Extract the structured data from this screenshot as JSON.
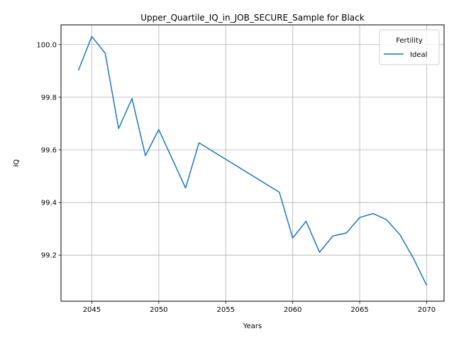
{
  "chart_data": {
    "type": "line",
    "title": "Upper_Quartile_IQ_in_JOB_SECURE_Sample for Black",
    "xlabel": "Years",
    "ylabel": "IQ",
    "xlim": [
      2042.7,
      2071.3
    ],
    "ylim": [
      99.025,
      100.075
    ],
    "xticks": [
      2045,
      2050,
      2055,
      2060,
      2065,
      2070
    ],
    "yticks": [
      99.2,
      99.4,
      99.6,
      99.8,
      100.0
    ],
    "xtick_labels": [
      "2045",
      "2050",
      "2055",
      "2060",
      "2065",
      "2070"
    ],
    "ytick_labels": [
      "99.2",
      "99.4",
      "99.6",
      "99.8",
      "100.0"
    ],
    "grid": true,
    "legend": {
      "title": "Fertility",
      "placement": "top-right"
    },
    "series": [
      {
        "name": "Ideal",
        "color": "#1f77b4",
        "x": [
          2044,
          2045,
          2046,
          2047,
          2048,
          2049,
          2050,
          2052,
          2053,
          2059,
          2060,
          2061,
          2062,
          2063,
          2064,
          2065,
          2066,
          2067,
          2068,
          2069,
          2070
        ],
        "y": [
          99.902,
          100.031,
          99.967,
          99.681,
          99.795,
          99.578,
          99.677,
          99.455,
          99.627,
          99.439,
          99.265,
          99.329,
          99.211,
          99.273,
          99.284,
          99.343,
          99.358,
          99.335,
          99.278,
          99.189,
          99.085
        ]
      }
    ]
  }
}
